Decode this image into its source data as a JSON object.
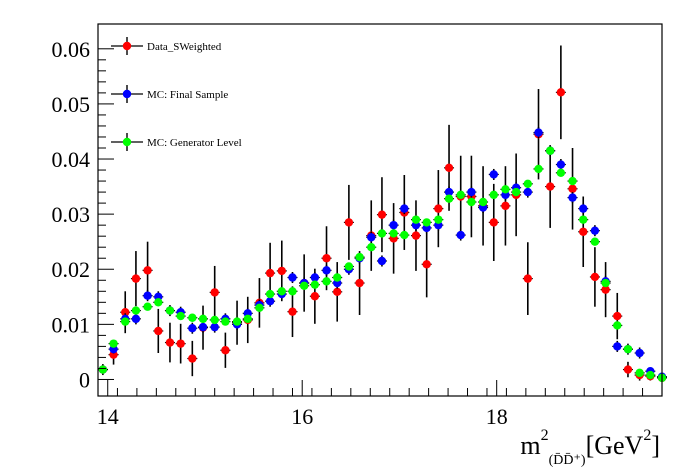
{
  "chart_data": {
    "type": "scatter",
    "xlabel_base": "m",
    "xlabel_sup": "2",
    "xlabel_sub": "(D̄D̄⁺)",
    "xlabel_unit_pre": "[GeV",
    "xlabel_unit_sup": "2",
    "xlabel_unit_post": "]",
    "xlim": [
      13.9,
      19.7
    ],
    "ylim": [
      -0.003,
      0.0645
    ],
    "x_ticks": [
      14,
      16,
      18
    ],
    "x_tick_labels": [
      "14",
      "16",
      "18"
    ],
    "y_ticks": [
      0,
      0.01,
      0.02,
      0.03,
      0.04,
      0.05,
      0.06
    ],
    "y_tick_labels": [
      "0",
      "0.01",
      "0.02",
      "0.03",
      "0.04",
      "0.05",
      "0.06"
    ],
    "legend_position": "top-left",
    "colors": {
      "Data_SWeighted": "#ff0000",
      "MC: Final Sample": "#0000ff",
      "MC: Generator Level": "#00ff00"
    },
    "series": [
      {
        "name": "Data_SWeighted",
        "color": "#ff0000",
        "x": [
          13.95,
          14.06,
          14.18,
          14.29,
          14.41,
          14.52,
          14.64,
          14.75,
          14.87,
          14.98,
          15.1,
          15.21,
          15.33,
          15.44,
          15.56,
          15.67,
          15.79,
          15.9,
          16.02,
          16.13,
          16.25,
          16.36,
          16.48,
          16.59,
          16.71,
          16.82,
          16.94,
          17.05,
          17.17,
          17.28,
          17.4,
          17.51,
          17.63,
          17.74,
          17.86,
          17.97,
          18.09,
          18.2,
          18.32,
          18.43,
          18.55,
          18.66,
          18.78,
          18.89,
          19.01,
          19.12,
          19.24,
          19.35,
          19.47,
          19.58,
          19.7
        ],
        "y": [
          0.0018,
          0.0045,
          0.0122,
          0.0183,
          0.0198,
          0.0088,
          0.0067,
          0.0065,
          0.0038,
          0.0094,
          0.0158,
          0.0053,
          0.0103,
          0.0108,
          0.0139,
          0.0193,
          0.0197,
          0.0123,
          0.0175,
          0.0151,
          0.022,
          0.0159,
          0.0285,
          0.0175,
          0.0261,
          0.0299,
          0.0256,
          0.0303,
          0.0261,
          0.0209,
          0.031,
          0.0384,
          0.0332,
          0.0332,
          0.0315,
          0.0285,
          0.0315,
          0.0335,
          0.0183,
          0.0445,
          0.035,
          0.0521,
          0.0346,
          0.0268,
          0.0186,
          0.0163,
          0.0115,
          0.0018,
          0.0008,
          0.0006,
          0.0003
        ],
        "err": [
          0.001,
          0.0018,
          0.0038,
          0.005,
          0.0052,
          0.004,
          0.0036,
          0.0036,
          0.0032,
          0.004,
          0.0048,
          0.0032,
          0.004,
          0.0042,
          0.0045,
          0.0055,
          0.0055,
          0.0046,
          0.0052,
          0.005,
          0.0058,
          0.0054,
          0.0068,
          0.0058,
          0.0064,
          0.0068,
          0.0064,
          0.0068,
          0.0064,
          0.006,
          0.007,
          0.0078,
          0.0074,
          0.0074,
          0.0072,
          0.007,
          0.0072,
          0.0075,
          0.0066,
          0.0082,
          0.0075,
          0.0085,
          0.0074,
          0.0064,
          0.0054,
          0.005,
          0.0042,
          0.0014,
          0.001,
          0.0008,
          0.0006
        ]
      },
      {
        "name": "MC: Final Sample",
        "color": "#0000ff",
        "x": [
          13.95,
          14.06,
          14.18,
          14.29,
          14.41,
          14.52,
          14.64,
          14.75,
          14.87,
          14.98,
          15.1,
          15.21,
          15.33,
          15.44,
          15.56,
          15.67,
          15.79,
          15.9,
          16.02,
          16.13,
          16.25,
          16.36,
          16.48,
          16.59,
          16.71,
          16.82,
          16.94,
          17.05,
          17.17,
          17.28,
          17.4,
          17.51,
          17.63,
          17.74,
          17.86,
          17.97,
          18.09,
          18.2,
          18.32,
          18.43,
          18.55,
          18.66,
          18.78,
          18.89,
          19.01,
          19.12,
          19.24,
          19.35,
          19.47,
          19.58,
          19.7
        ],
        "y": [
          0.0018,
          0.0055,
          0.011,
          0.011,
          0.0152,
          0.015,
          0.0125,
          0.0122,
          0.0093,
          0.0095,
          0.0095,
          0.011,
          0.01,
          0.012,
          0.0135,
          0.0142,
          0.0155,
          0.0185,
          0.0175,
          0.0185,
          0.0198,
          0.0175,
          0.02,
          0.022,
          0.0258,
          0.0215,
          0.028,
          0.031,
          0.028,
          0.0275,
          0.028,
          0.034,
          0.0262,
          0.034,
          0.0312,
          0.0372,
          0.0335,
          0.0348,
          0.034,
          0.0448,
          0.0415,
          0.039,
          0.033,
          0.031,
          0.027,
          0.0178,
          0.006,
          0.0055,
          0.0048,
          0.0015,
          0.0005
        ],
        "err": [
          0.0006,
          0.0008,
          0.001,
          0.001,
          0.001,
          0.001,
          0.001,
          0.001,
          0.001,
          0.001,
          0.001,
          0.001,
          0.001,
          0.001,
          0.001,
          0.001,
          0.001,
          0.001,
          0.001,
          0.001,
          0.001,
          0.001,
          0.001,
          0.001,
          0.001,
          0.001,
          0.001,
          0.001,
          0.001,
          0.001,
          0.001,
          0.001,
          0.001,
          0.001,
          0.001,
          0.001,
          0.001,
          0.001,
          0.001,
          0.001,
          0.001,
          0.001,
          0.001,
          0.001,
          0.001,
          0.001,
          0.001,
          0.001,
          0.001,
          0.0006,
          0.0004
        ]
      },
      {
        "name": "MC: Generator Level",
        "color": "#00ff00",
        "x": [
          13.95,
          14.06,
          14.18,
          14.29,
          14.41,
          14.52,
          14.64,
          14.75,
          14.87,
          14.98,
          15.1,
          15.21,
          15.33,
          15.44,
          15.56,
          15.67,
          15.79,
          15.9,
          16.02,
          16.13,
          16.25,
          16.36,
          16.48,
          16.59,
          16.71,
          16.82,
          16.94,
          17.05,
          17.17,
          17.28,
          17.4,
          17.51,
          17.63,
          17.74,
          17.86,
          17.97,
          18.09,
          18.2,
          18.32,
          18.43,
          18.55,
          18.66,
          18.78,
          18.89,
          19.01,
          19.12,
          19.24,
          19.35,
          19.47,
          19.58,
          19.7
        ],
        "y": [
          0.0018,
          0.0065,
          0.0105,
          0.0125,
          0.0132,
          0.014,
          0.0125,
          0.0115,
          0.0112,
          0.011,
          0.0108,
          0.0105,
          0.0105,
          0.011,
          0.013,
          0.0155,
          0.016,
          0.016,
          0.017,
          0.0172,
          0.0178,
          0.0185,
          0.0205,
          0.0222,
          0.024,
          0.0265,
          0.0265,
          0.0262,
          0.029,
          0.0285,
          0.029,
          0.0328,
          0.0335,
          0.0322,
          0.0322,
          0.0335,
          0.0345,
          0.034,
          0.0355,
          0.0382,
          0.0415,
          0.0375,
          0.036,
          0.029,
          0.025,
          0.0175,
          0.0098,
          0.0055,
          0.0012,
          0.0008,
          0.0003
        ],
        "err": [
          0.0004,
          0.0005,
          0.0005,
          0.0005,
          0.0005,
          0.0005,
          0.0005,
          0.0005,
          0.0005,
          0.0005,
          0.0005,
          0.0005,
          0.0005,
          0.0005,
          0.0005,
          0.0005,
          0.0005,
          0.0005,
          0.0005,
          0.0005,
          0.0005,
          0.0005,
          0.0005,
          0.0005,
          0.0005,
          0.0005,
          0.0005,
          0.0005,
          0.0005,
          0.0005,
          0.0005,
          0.0005,
          0.0005,
          0.0005,
          0.0005,
          0.0005,
          0.0005,
          0.0005,
          0.0005,
          0.0005,
          0.0005,
          0.0005,
          0.0005,
          0.0005,
          0.0005,
          0.0005,
          0.0005,
          0.0005,
          0.0005,
          0.0004,
          0.0003
        ]
      }
    ]
  }
}
